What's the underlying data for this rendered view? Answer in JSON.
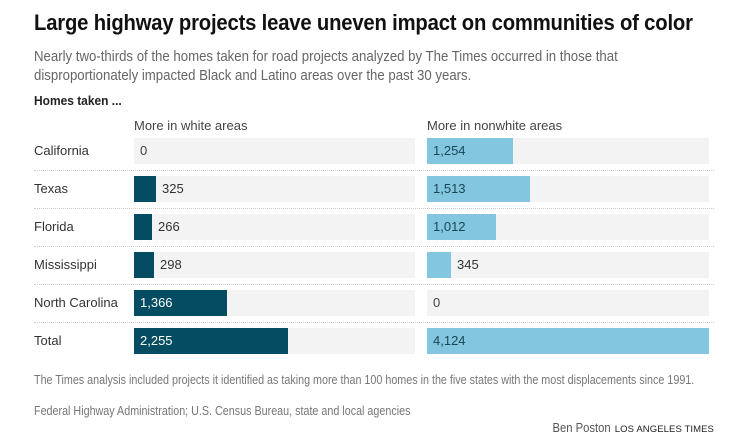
{
  "header": {
    "title": "Large highway projects leave uneven impact on communities of color",
    "subtitle": "Nearly two-thirds of the homes taken for road projects analyzed by The Times occurred in those that disproportionately impacted Black and Latino areas over the past 30 years.",
    "section_label": "Homes taken ..."
  },
  "chart_data": {
    "type": "bar",
    "orientation": "horizontal",
    "title": "Large highway projects leave uneven impact on communities of color",
    "ylabel": "Homes taken ...",
    "xlim": [
      0,
      4124
    ],
    "grid": false,
    "categories": [
      "California",
      "Texas",
      "Florida",
      "Mississippi",
      "North Carolina",
      "Total"
    ],
    "series": [
      {
        "name": "More in white areas",
        "color": "#034c61",
        "label_color_inside": "#ffffff",
        "values": [
          0,
          325,
          266,
          298,
          1366,
          2255
        ],
        "labels": [
          "0",
          "325",
          "266",
          "298",
          "1,366",
          "2,255"
        ]
      },
      {
        "name": "More in nonwhite areas",
        "color": "#82c6df",
        "label_color_inside": "#1d4657",
        "values": [
          1254,
          1513,
          1012,
          345,
          0,
          4124
        ],
        "labels": [
          "1,254",
          "1,513",
          "1,012",
          "345",
          "0",
          "4,124"
        ]
      }
    ],
    "track_color": "#f3f3f3"
  },
  "footer": {
    "note": "The Times analysis included projects it identified as taking more than 100 homes in the five states with the most displacements since 1991.",
    "source": "Federal Highway Administration; U.S. Census Bureau, state and local agencies",
    "author": "Ben Poston",
    "organization": "LOS ANGELES TIMES"
  }
}
